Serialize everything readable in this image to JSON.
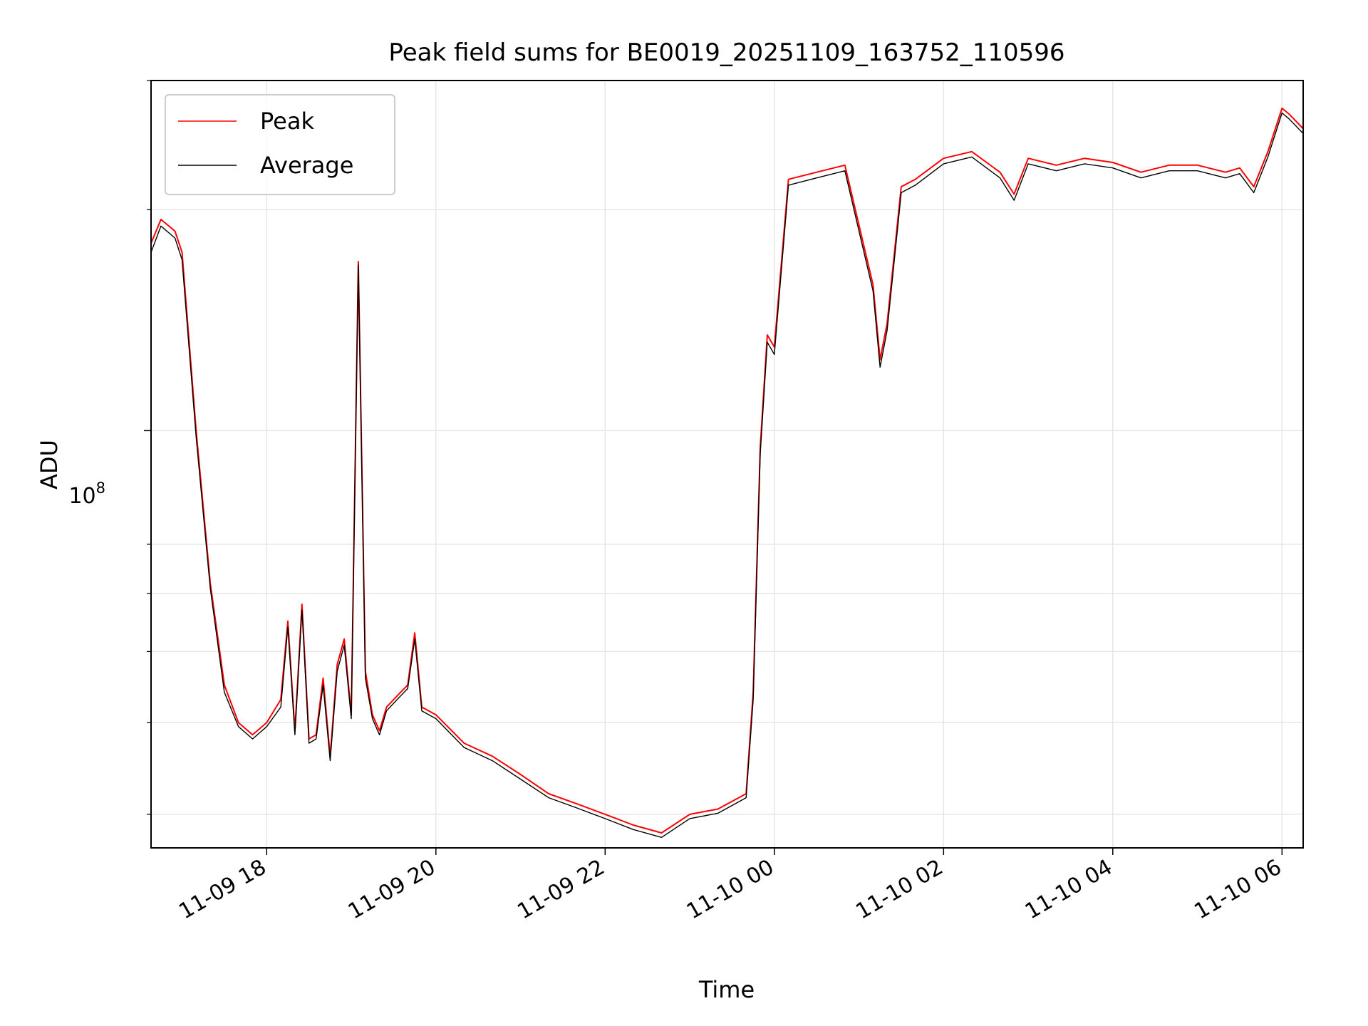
{
  "chart_data": {
    "type": "line",
    "title": "Peak field sums for BE0019_20251109_163752_110596",
    "xlabel": "Time",
    "ylabel": "ADU",
    "yscale": "log",
    "ylim": [
      27000000,
      300000000
    ],
    "xlim": [
      "2025-11-09 16:38",
      "2025-11-10 06:15"
    ],
    "x_ticks": [
      "11-09 18",
      "11-09 20",
      "11-09 22",
      "11-10 00",
      "11-10 02",
      "11-10 04",
      "11-10 06"
    ],
    "y_major_tick": {
      "base": "10",
      "exponent": "8"
    },
    "grid": true,
    "legend_position": "upper left",
    "series": [
      {
        "name": "Peak",
        "color": "#ff0000",
        "x": [
          "2025-11-09 16:38",
          "2025-11-09 16:45",
          "2025-11-09 16:55",
          "2025-11-09 17:00",
          "2025-11-09 17:10",
          "2025-11-09 17:20",
          "2025-11-09 17:30",
          "2025-11-09 17:40",
          "2025-11-09 17:50",
          "2025-11-09 18:00",
          "2025-11-09 18:10",
          "2025-11-09 18:15",
          "2025-11-09 18:20",
          "2025-11-09 18:25",
          "2025-11-09 18:30",
          "2025-11-09 18:35",
          "2025-11-09 18:40",
          "2025-11-09 18:45",
          "2025-11-09 18:50",
          "2025-11-09 18:55",
          "2025-11-09 19:00",
          "2025-11-09 19:05",
          "2025-11-09 19:10",
          "2025-11-09 19:15",
          "2025-11-09 19:20",
          "2025-11-09 19:25",
          "2025-11-09 19:30",
          "2025-11-09 19:35",
          "2025-11-09 19:40",
          "2025-11-09 19:45",
          "2025-11-09 19:50",
          "2025-11-09 20:00",
          "2025-11-09 20:20",
          "2025-11-09 20:40",
          "2025-11-09 21:00",
          "2025-11-09 21:20",
          "2025-11-09 21:40",
          "2025-11-09 22:00",
          "2025-11-09 22:20",
          "2025-11-09 22:40",
          "2025-11-09 23:00",
          "2025-11-09 23:20",
          "2025-11-09 23:40",
          "2025-11-09 23:45",
          "2025-11-09 23:50",
          "2025-11-09 23:55",
          "2025-11-10 00:00",
          "2025-11-10 00:10",
          "2025-11-10 00:30",
          "2025-11-10 00:50",
          "2025-11-10 01:10",
          "2025-11-10 01:15",
          "2025-11-10 01:20",
          "2025-11-10 01:30",
          "2025-11-10 01:40",
          "2025-11-10 02:00",
          "2025-11-10 02:20",
          "2025-11-10 02:40",
          "2025-11-10 02:50",
          "2025-11-10 03:00",
          "2025-11-10 03:20",
          "2025-11-10 03:40",
          "2025-11-10 04:00",
          "2025-11-10 04:20",
          "2025-11-10 04:40",
          "2025-11-10 05:00",
          "2025-11-10 05:20",
          "2025-11-10 05:30",
          "2025-11-10 05:40",
          "2025-11-10 05:50",
          "2025-11-10 06:00",
          "2025-11-10 06:05",
          "2025-11-10 06:15"
        ],
        "y": [
          180000000,
          194000000,
          187000000,
          175000000,
          100000000,
          62000000,
          45000000,
          40000000,
          38500000,
          40000000,
          43000000,
          55000000,
          39000000,
          58000000,
          38000000,
          38500000,
          46000000,
          36000000,
          48000000,
          52000000,
          41000000,
          170000000,
          47000000,
          41000000,
          39000000,
          42000000,
          43000000,
          44000000,
          45000000,
          53000000,
          42000000,
          41000000,
          37500000,
          36000000,
          34000000,
          32000000,
          31000000,
          30000000,
          29000000,
          28300000,
          30000000,
          30500000,
          32000000,
          44000000,
          95000000,
          135000000,
          130000000,
          220000000,
          225000000,
          230000000,
          158000000,
          125000000,
          140000000,
          215000000,
          220000000,
          235000000,
          240000000,
          225000000,
          210000000,
          235000000,
          230000000,
          235000000,
          232000000,
          225000000,
          230000000,
          230000000,
          225000000,
          228000000,
          215000000,
          240000000,
          275000000,
          270000000,
          258000000
        ]
      },
      {
        "name": "Average",
        "color": "#000000",
        "x": [
          "2025-11-09 16:38",
          "2025-11-09 16:45",
          "2025-11-09 16:55",
          "2025-11-09 17:00",
          "2025-11-09 17:10",
          "2025-11-09 17:20",
          "2025-11-09 17:30",
          "2025-11-09 17:40",
          "2025-11-09 17:50",
          "2025-11-09 18:00",
          "2025-11-09 18:10",
          "2025-11-09 18:15",
          "2025-11-09 18:20",
          "2025-11-09 18:25",
          "2025-11-09 18:30",
          "2025-11-09 18:35",
          "2025-11-09 18:40",
          "2025-11-09 18:45",
          "2025-11-09 18:50",
          "2025-11-09 18:55",
          "2025-11-09 19:00",
          "2025-11-09 19:05",
          "2025-11-09 19:10",
          "2025-11-09 19:15",
          "2025-11-09 19:20",
          "2025-11-09 19:25",
          "2025-11-09 19:30",
          "2025-11-09 19:35",
          "2025-11-09 19:40",
          "2025-11-09 19:45",
          "2025-11-09 19:50",
          "2025-11-09 20:00",
          "2025-11-09 20:20",
          "2025-11-09 20:40",
          "2025-11-09 21:00",
          "2025-11-09 21:20",
          "2025-11-09 21:40",
          "2025-11-09 22:00",
          "2025-11-09 22:20",
          "2025-11-09 22:40",
          "2025-11-09 23:00",
          "2025-11-09 23:20",
          "2025-11-09 23:40",
          "2025-11-09 23:45",
          "2025-11-09 23:50",
          "2025-11-09 23:55",
          "2025-11-10 00:00",
          "2025-11-10 00:10",
          "2025-11-10 00:30",
          "2025-11-10 00:50",
          "2025-11-10 01:10",
          "2025-11-10 01:15",
          "2025-11-10 01:20",
          "2025-11-10 01:30",
          "2025-11-10 01:40",
          "2025-11-10 02:00",
          "2025-11-10 02:20",
          "2025-11-10 02:40",
          "2025-11-10 02:50",
          "2025-11-10 03:00",
          "2025-11-10 03:20",
          "2025-11-10 03:40",
          "2025-11-10 04:00",
          "2025-11-10 04:20",
          "2025-11-10 04:40",
          "2025-11-10 05:00",
          "2025-11-10 05:20",
          "2025-11-10 05:30",
          "2025-11-10 05:40",
          "2025-11-10 05:50",
          "2025-11-10 06:00",
          "2025-11-10 06:05",
          "2025-11-10 06:15"
        ],
        "y": [
          175000000,
          190000000,
          183000000,
          171000000,
          98000000,
          61000000,
          44000000,
          39500000,
          38000000,
          39500000,
          42000000,
          54000000,
          38500000,
          57000000,
          37500000,
          38000000,
          45000000,
          35500000,
          47000000,
          51000000,
          40500000,
          168000000,
          46000000,
          40500000,
          38500000,
          41500000,
          42500000,
          43500000,
          44500000,
          52000000,
          41500000,
          40500000,
          37000000,
          35500000,
          33500000,
          31600000,
          30600000,
          29600000,
          28600000,
          27900000,
          29600000,
          30100000,
          31600000,
          43000000,
          93000000,
          132000000,
          127000000,
          216000000,
          221000000,
          226000000,
          155000000,
          122000000,
          137000000,
          211000000,
          216000000,
          231000000,
          236000000,
          221000000,
          206000000,
          231000000,
          226000000,
          231000000,
          228000000,
          221000000,
          226000000,
          226000000,
          221000000,
          224000000,
          211000000,
          236000000,
          271000000,
          266000000,
          254000000
        ]
      }
    ]
  }
}
